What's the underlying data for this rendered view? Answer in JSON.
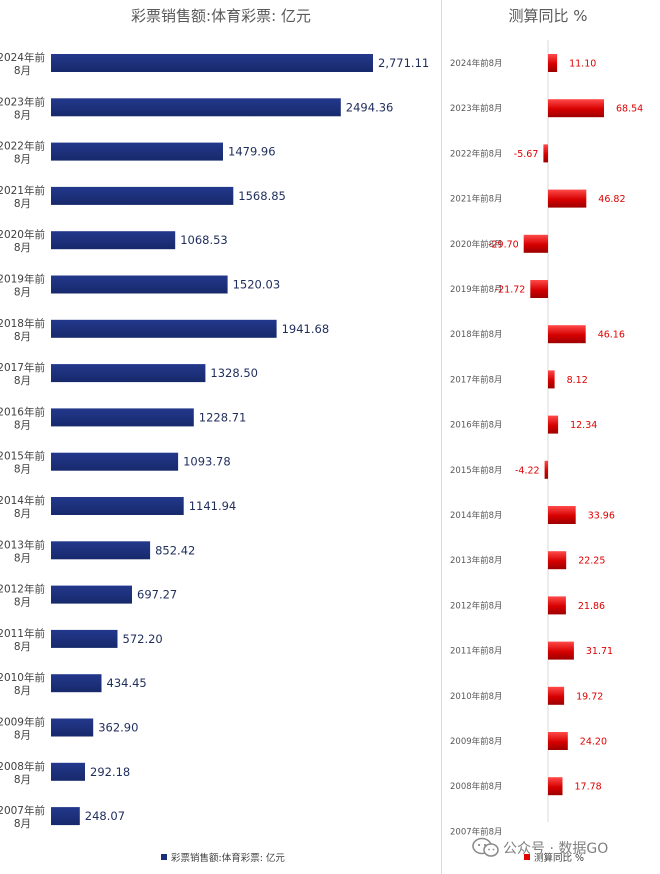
{
  "chart_data": [
    {
      "type": "bar",
      "orientation": "horizontal",
      "title": "彩票销售额:体育彩票: 亿元",
      "categories": [
        "2024年前8月",
        "2023年前8月",
        "2022年前8月",
        "2021年前8月",
        "2020年前8月",
        "2019年前8月",
        "2018年前8月",
        "2017年前8月",
        "2016年前8月",
        "2015年前8月",
        "2014年前8月",
        "2013年前8月",
        "2012年前8月",
        "2011年前8月",
        "2010年前8月",
        "2009年前8月",
        "2008年前8月",
        "2007年前8月"
      ],
      "category_lines": [
        [
          "2024年前",
          "8月"
        ],
        [
          "2023年前",
          "8月"
        ],
        [
          "2022年前",
          "8月"
        ],
        [
          "2021年前",
          "8月"
        ],
        [
          "2020年前",
          "8月"
        ],
        [
          "2019年前",
          "8月"
        ],
        [
          "2018年前",
          "8月"
        ],
        [
          "2017年前",
          "8月"
        ],
        [
          "2016年前",
          "8月"
        ],
        [
          "2015年前",
          "8月"
        ],
        [
          "2014年前",
          "8月"
        ],
        [
          "2013年前",
          "8月"
        ],
        [
          "2012年前",
          "8月"
        ],
        [
          "2011年前",
          "8月"
        ],
        [
          "2010年前",
          "8月"
        ],
        [
          "2009年前",
          "8月"
        ],
        [
          "2008年前",
          "8月"
        ],
        [
          "2007年前",
          "8月"
        ]
      ],
      "values": [
        2771.11,
        2494.36,
        1479.96,
        1568.85,
        1068.53,
        1520.03,
        1941.68,
        1328.5,
        1228.71,
        1093.78,
        1141.94,
        852.42,
        697.27,
        572.2,
        434.45,
        362.9,
        292.18,
        248.07
      ],
      "value_labels": [
        "2,771.11",
        "2494.36",
        "1479.96",
        "1568.85",
        "1068.53",
        "1520.03",
        "1941.68",
        "1328.50",
        "1228.71",
        "1093.78",
        "1141.94",
        "852.42",
        "697.27",
        "572.20",
        "434.45",
        "362.90",
        "292.18",
        "248.07"
      ],
      "legend": "彩票销售额:体育彩票: 亿元",
      "color": "#1c2f7a"
    },
    {
      "type": "bar",
      "orientation": "horizontal",
      "title": "测算同比 %",
      "categories": [
        "2024年前8月",
        "2023年前8月",
        "2022年前8月",
        "2021年前8月",
        "2020年前8月",
        "2019年前8月",
        "2018年前8月",
        "2017年前8月",
        "2016年前8月",
        "2015年前8月",
        "2014年前8月",
        "2013年前8月",
        "2012年前8月",
        "2011年前8月",
        "2010年前8月",
        "2009年前8月",
        "2008年前8月",
        "2007年前8月"
      ],
      "values": [
        11.1,
        68.54,
        -5.67,
        46.82,
        -29.7,
        -21.72,
        46.16,
        8.12,
        12.34,
        -4.22,
        33.96,
        22.25,
        21.86,
        31.71,
        19.72,
        24.2,
        17.78,
        null
      ],
      "value_labels": [
        "11.10",
        "68.54",
        "-5.67",
        "46.82",
        "-29.70",
        "-21.72",
        "46.16",
        "8.12",
        "12.34",
        "-4.22",
        "33.96",
        "22.25",
        "21.86",
        "31.71",
        "19.72",
        "24.20",
        "17.78",
        ""
      ],
      "legend": "测算同比 %",
      "color": "#e00000"
    }
  ],
  "watermark": "公众号 · 数据GO"
}
